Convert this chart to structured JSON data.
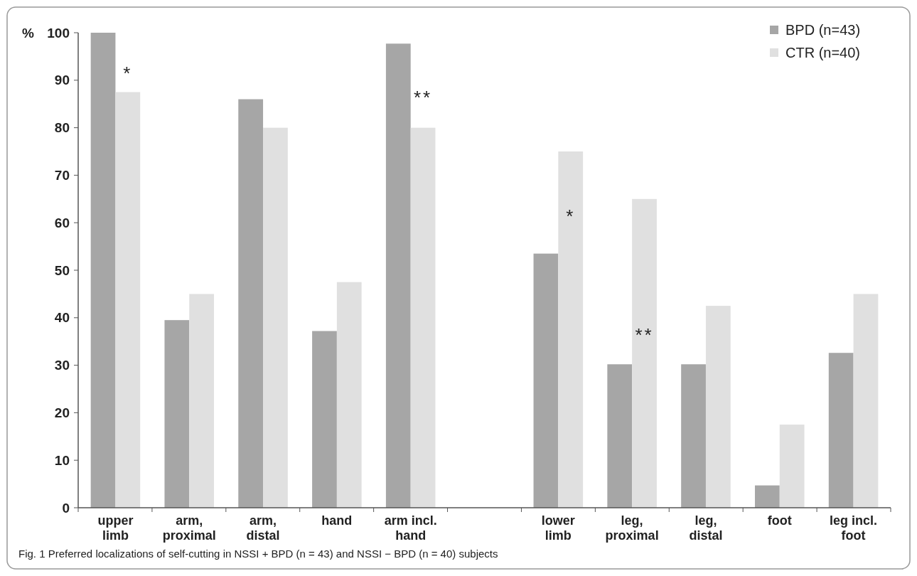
{
  "chart_data": {
    "type": "bar",
    "ylabel": "%",
    "categories": [
      "upper limb",
      "arm, proximal",
      "arm, distal",
      "hand",
      "arm incl. hand",
      null,
      "lower limb",
      "leg, proximal",
      "leg, distal",
      "foot",
      "leg incl. foot"
    ],
    "series": [
      {
        "name": "BPD (n=43)",
        "color": "#a6a6a6",
        "values": [
          100,
          39.5,
          86,
          37.2,
          97.7,
          null,
          53.5,
          30.2,
          30.2,
          4.7,
          32.6
        ]
      },
      {
        "name": "CTR (n=40)",
        "color": "#e0e0e0",
        "values": [
          87.5,
          45,
          80,
          47.5,
          80,
          null,
          75,
          65,
          42.5,
          17.5,
          45
        ]
      }
    ],
    "ylim": [
      0,
      100
    ],
    "yticks": [
      0,
      10,
      20,
      30,
      40,
      50,
      60,
      70,
      80,
      90,
      100
    ],
    "grid": false,
    "legend": "top right",
    "annotations": [
      {
        "text": "*",
        "x": "upper limb",
        "y": 92
      },
      {
        "text": "**",
        "x": "arm incl. hand",
        "y": 87
      },
      {
        "text": "*",
        "x": "lower limb",
        "y": 62
      },
      {
        "text": "**",
        "x": "leg, proximal",
        "y": 37
      },
      "Fig. 1 Preferred localizations of self-cutting in NSSI + BPD (n = 43) and NSSI − BPD (n = 40) subjects"
    ]
  }
}
